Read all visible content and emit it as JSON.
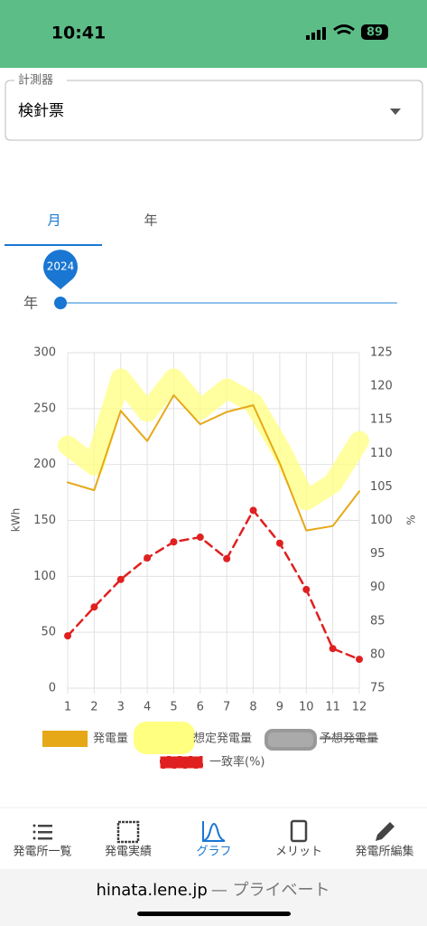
{
  "status_bar": {
    "time": "10:41",
    "battery": "89"
  },
  "selector": {
    "label": "計測器",
    "value": "検針票"
  },
  "tabs": [
    "月",
    "年"
  ],
  "slider": {
    "value": "2024",
    "label": "年"
  },
  "chart_data": {
    "type": "line",
    "x": [
      1,
      2,
      3,
      4,
      5,
      6,
      7,
      8,
      9,
      10,
      11,
      12
    ],
    "xlim": [
      1,
      12
    ],
    "xticks": [
      1,
      2,
      3,
      4,
      5,
      6,
      7,
      8,
      9,
      10,
      11,
      12
    ],
    "ylabel": "kWh",
    "y2label": "%",
    "ylim": [
      0,
      300
    ],
    "yticks": [
      0,
      50,
      100,
      150,
      200,
      250,
      300
    ],
    "y2lim": [
      75,
      125
    ],
    "y2ticks": [
      75,
      80,
      85,
      90,
      95,
      100,
      105,
      110,
      115,
      120,
      125
    ],
    "grid": true,
    "series": [
      {
        "name": "発電量",
        "color": "#e6a817",
        "values": [
          184,
          177,
          248,
          221,
          262,
          236,
          247,
          253,
          201,
          141,
          145,
          176
        ]
      },
      {
        "name": "想定発電量",
        "color": "#ffff80",
        "values": [
          217,
          199,
          277,
          247,
          277,
          249,
          268,
          255,
          215,
          168,
          183,
          221
        ]
      },
      {
        "name": "予想発電量",
        "color": "#999999",
        "hidden": true,
        "values": [
          null,
          null,
          null,
          null,
          null,
          null,
          null,
          null,
          null,
          null,
          null,
          null
        ]
      },
      {
        "name": "一致率(%)",
        "color": "#e02020",
        "axis": "y2",
        "line_style": "dashed",
        "markers": true,
        "values": [
          82.8,
          87.1,
          91.2,
          94.4,
          96.8,
          97.5,
          94.3,
          101.5,
          96.6,
          89.7,
          80.9,
          79.3
        ]
      }
    ]
  },
  "nav": [
    "発電所一覧",
    "発電実績",
    "グラフ",
    "メリット",
    "発電所編集"
  ],
  "url_bar": {
    "host": "hinata.lene.jp",
    "suffix": "— プライベート"
  }
}
